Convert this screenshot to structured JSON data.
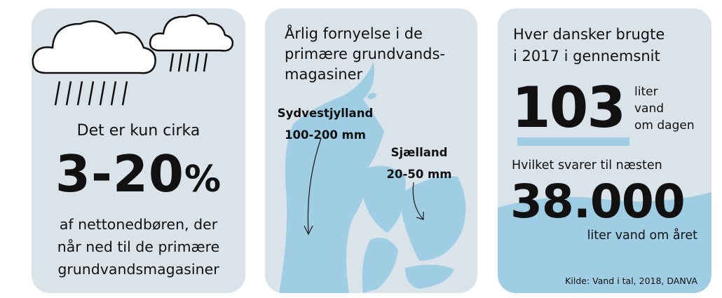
{
  "colors": {
    "panel": "#dae2ea",
    "water": "#9fcde4",
    "text": "#111111"
  },
  "left": {
    "icons": [
      "rain-cloud-icon",
      "rain-cloud-icon"
    ],
    "intro": "Det er kun cirka",
    "big": "3-20",
    "percent": "%",
    "body": [
      "af nettonedbøren, der",
      "når ned til de primære",
      "grundvandsmagasiner"
    ]
  },
  "middle": {
    "title": [
      "Årlig fornyelse i de",
      "primære grundvands-",
      "magasiner"
    ],
    "regions": [
      {
        "name": "Sydvestjylland",
        "value": "100-200 mm"
      },
      {
        "name": "Sjælland",
        "value": "20-50 mm"
      }
    ]
  },
  "right": {
    "title": [
      "Hver dansker brugte",
      "i 2017 i gennemsnit"
    ],
    "daily": "103",
    "daily_unit": [
      "liter",
      "vand",
      "om dagen"
    ],
    "bridge": "Hvilket svarer til næsten",
    "yearly": "38.000",
    "yearly_unit": "liter vand om året",
    "source": "Kilde: Vand i tal, 2018, DANVA"
  }
}
